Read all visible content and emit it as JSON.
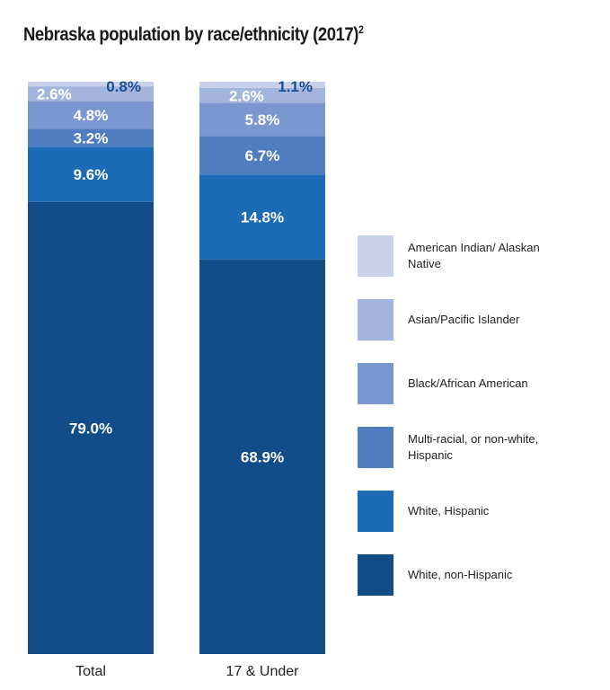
{
  "title": "Nebraska population by race/ethnicity (2017)",
  "title_superscript": "2",
  "colors": {
    "american_indian": "#c9d1ea",
    "asian": "#a3b4dd",
    "black": "#7c97cf",
    "multi": "#4f7dbf",
    "white_hispanic": "#1b6bb6",
    "white_non_hispanic": "#124c89"
  },
  "legend": [
    {
      "key": "american_indian",
      "label": "American Indian/ Alaskan Native"
    },
    {
      "key": "asian",
      "label": "Asian/Pacific Islander"
    },
    {
      "key": "black",
      "label": "Black/African American"
    },
    {
      "key": "multi",
      "label": "Multi-racial, or non-white, Hispanic"
    },
    {
      "key": "white_hispanic",
      "label": "White, Hispanic"
    },
    {
      "key": "white_non_hispanic",
      "label": "White, non-Hispanic"
    }
  ],
  "chart_data": {
    "type": "bar",
    "stacked": true,
    "categories": [
      "Total",
      "17 & Under"
    ],
    "series": [
      {
        "name": "White, non-Hispanic",
        "key": "white_non_hispanic",
        "values": [
          79.0,
          68.9
        ],
        "labels": [
          "79.0%",
          "68.9%"
        ]
      },
      {
        "name": "White, Hispanic",
        "key": "white_hispanic",
        "values": [
          9.6,
          14.8
        ],
        "labels": [
          "9.6%",
          "14.8%"
        ]
      },
      {
        "name": "Multi-racial, or non-white, Hispanic",
        "key": "multi",
        "values": [
          3.2,
          6.7
        ],
        "labels": [
          "3.2%",
          "6.7%"
        ]
      },
      {
        "name": "Black/African American",
        "key": "black",
        "values": [
          4.8,
          5.8
        ],
        "labels": [
          "4.8%",
          "5.8%"
        ]
      },
      {
        "name": "Asian/Pacific Islander",
        "key": "asian",
        "values": [
          2.6,
          2.6
        ],
        "labels": [
          "2.6%",
          "2.6%"
        ]
      },
      {
        "name": "American Indian/ Alaskan Native",
        "key": "american_indian",
        "values": [
          0.8,
          1.1
        ],
        "labels": [
          "0.8%",
          "1.1%"
        ]
      }
    ],
    "ylim": [
      0,
      100
    ],
    "legend_position": "right"
  }
}
